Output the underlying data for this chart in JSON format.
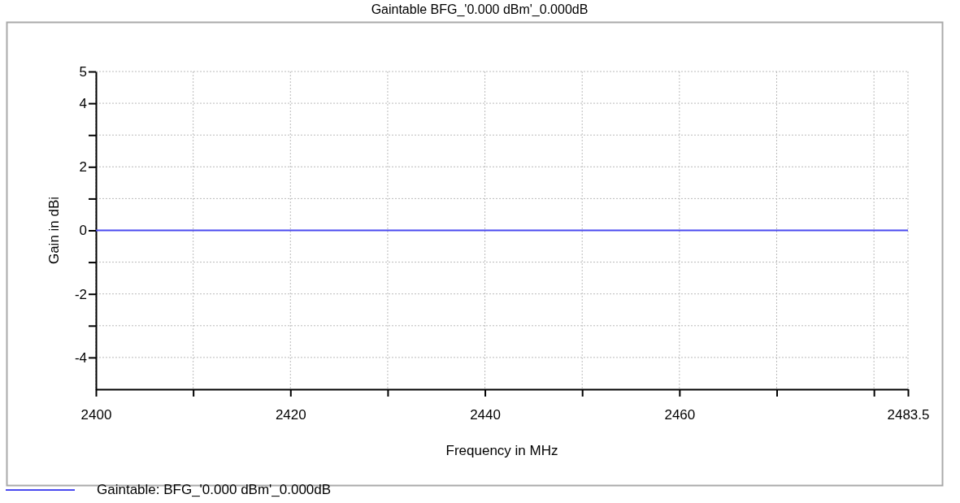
{
  "chart_data": {
    "type": "line",
    "title": "Gaintable BFG_'0.000 dBm'_0.000dB",
    "xlabel": "Frequency in MHz",
    "ylabel": "Gain in dBi",
    "x": [
      2400,
      2483.5
    ],
    "series": [
      {
        "name": "Gaintable: BFG_'0.000 dBm'_0.000dB",
        "color": "#4a4af0",
        "values": [
          0,
          0
        ]
      }
    ],
    "xlim": [
      2400,
      2483.5
    ],
    "xticks": [
      2400,
      {
        "value": 2410,
        "label": null
      },
      2420,
      {
        "value": 2430,
        "label": null
      },
      2440,
      {
        "value": 2450,
        "label": null
      },
      2460,
      {
        "value": 2470,
        "label": null
      },
      {
        "value": 2480,
        "label": null
      },
      2483.5
    ],
    "ylim": [
      -5,
      5
    ],
    "yticks": [
      {
        "value": -4,
        "label": "-4"
      },
      {
        "value": -3,
        "label": null
      },
      {
        "value": -2,
        "label": "-2"
      },
      {
        "value": -1,
        "label": null
      },
      0,
      {
        "value": 1,
        "label": null
      },
      2,
      {
        "value": 3,
        "label": null
      },
      4,
      5
    ],
    "grid": true,
    "legend": "bottom",
    "marker": "none",
    "line_style": "solid"
  }
}
